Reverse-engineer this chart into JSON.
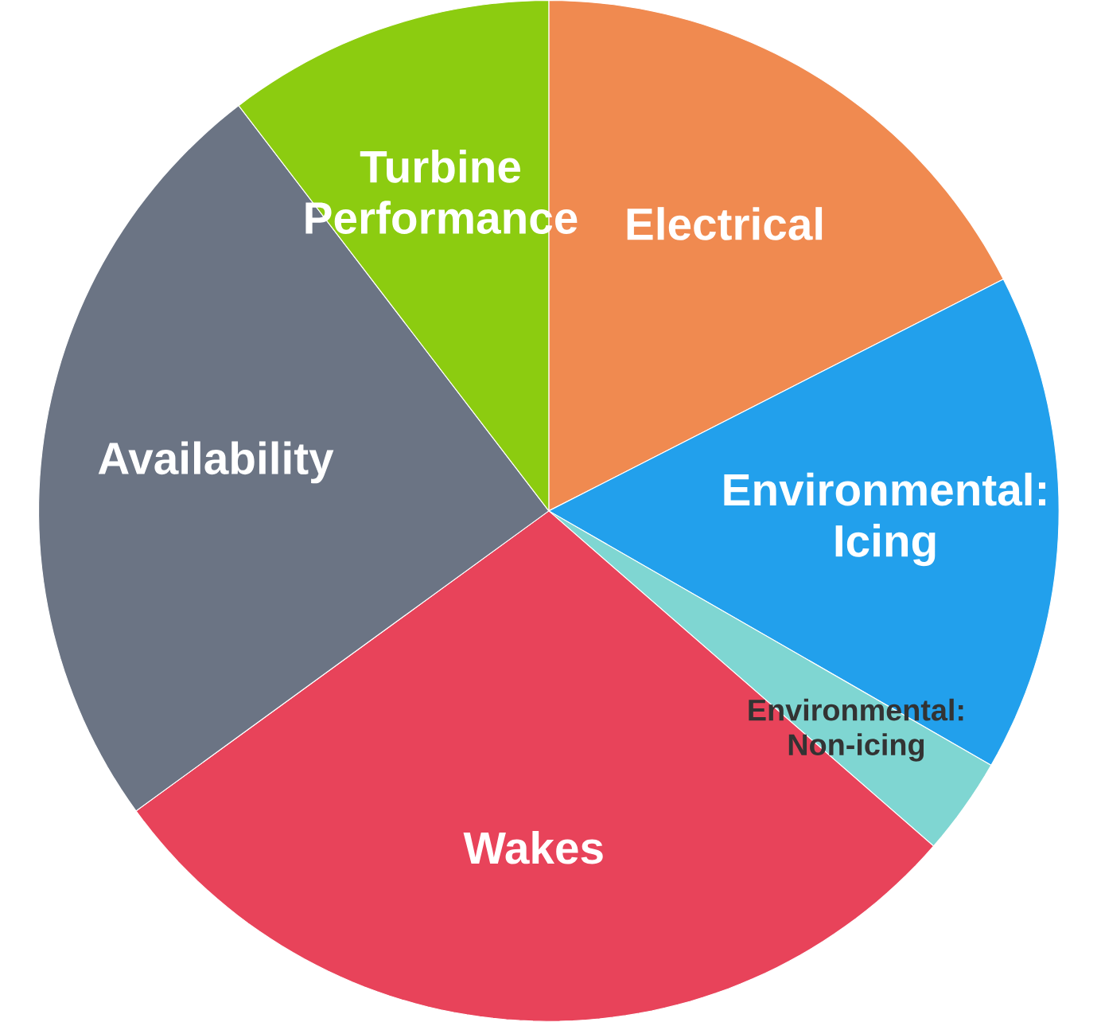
{
  "chart_data": {
    "type": "pie",
    "categories": [
      "Electrical",
      "Environmental: Icing",
      "Environmental: Non-icing",
      "Wakes",
      "Availability",
      "Turbine Performance"
    ],
    "values": [
      17.5,
      15.8,
      3.1,
      28.6,
      24.6,
      10.4
    ],
    "colors": [
      "#f08a50",
      "#22a0ec",
      "#7fd6d2",
      "#e8435a",
      "#6b7484",
      "#8ccc10"
    ]
  }
}
